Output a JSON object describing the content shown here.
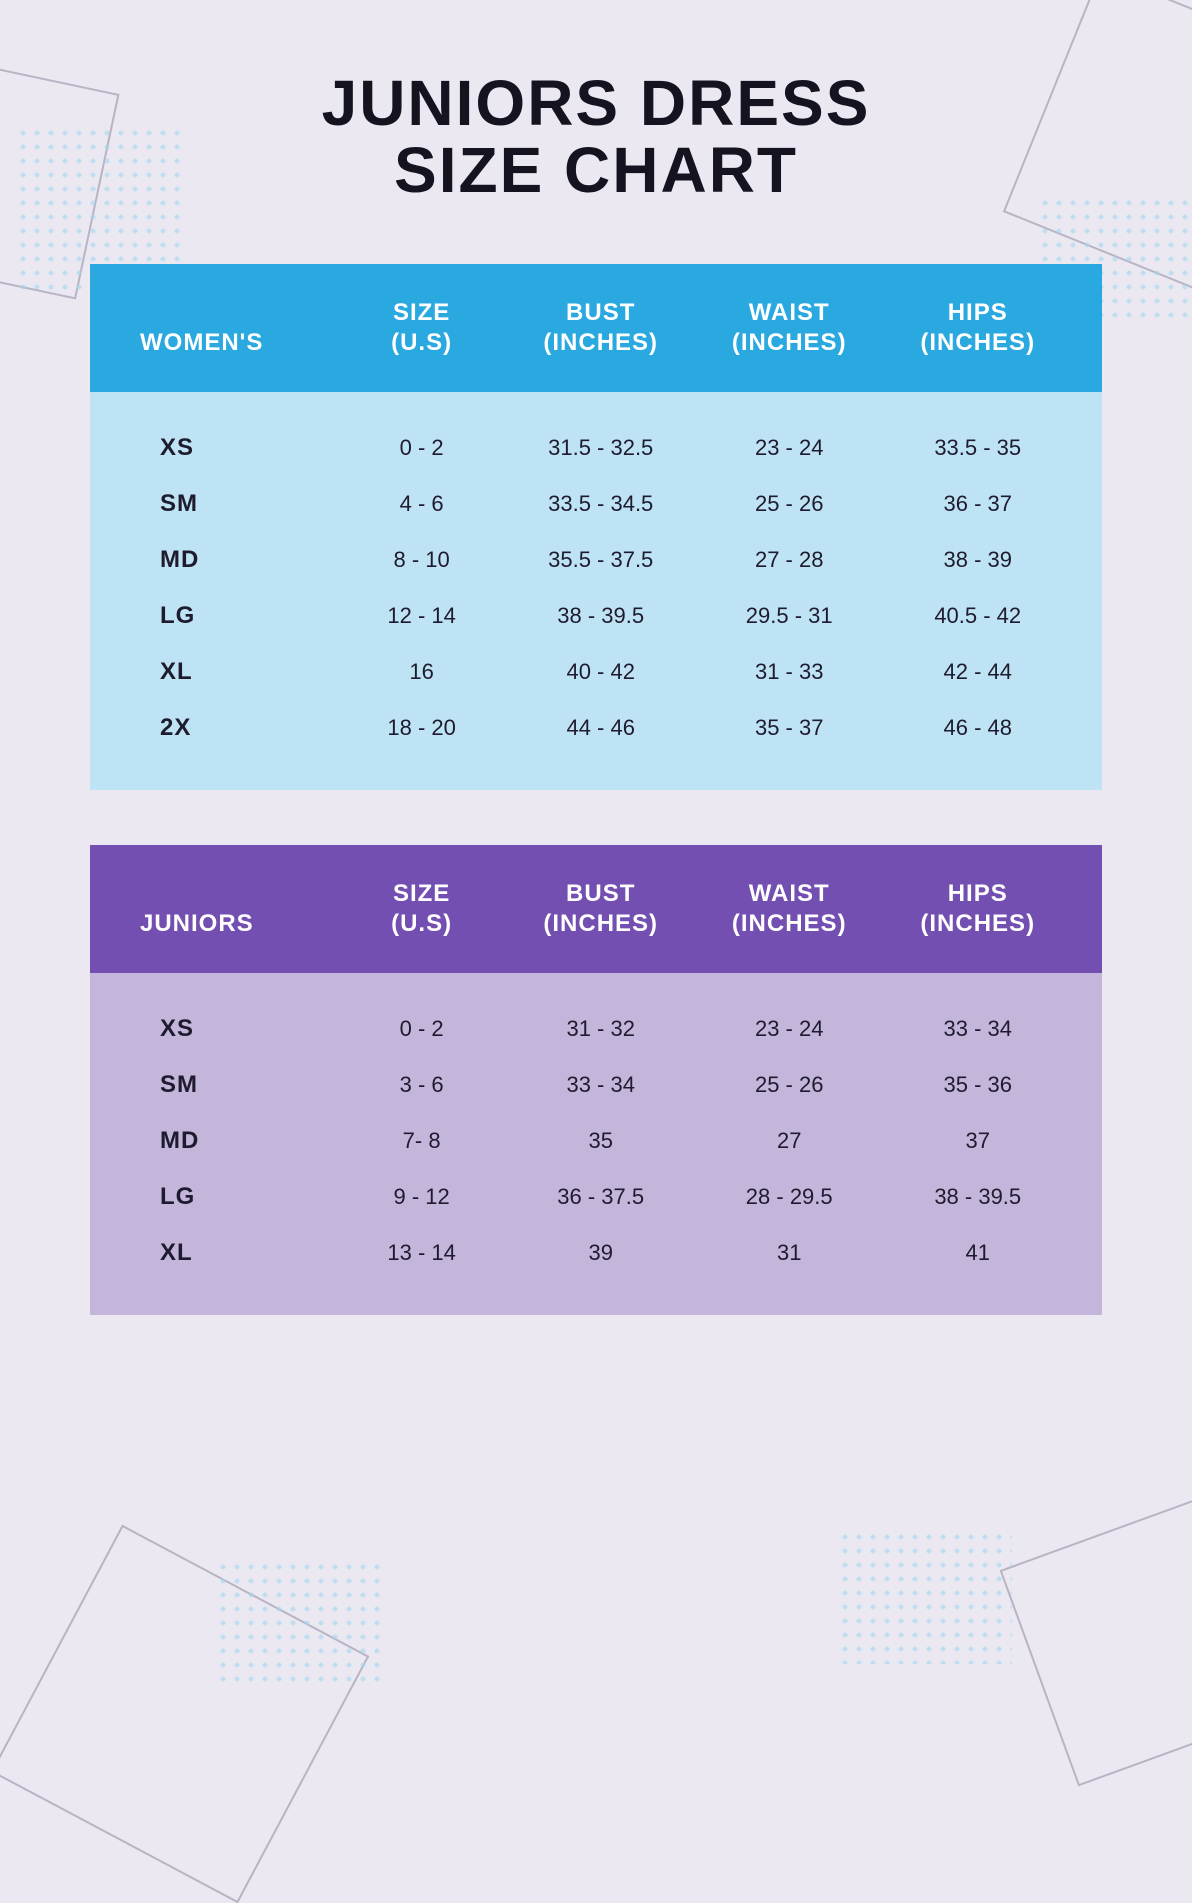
{
  "title_line1": "JUNIORS DRESS",
  "title_line2": "SIZE CHART",
  "background_color": "#ece8f2",
  "deco_line_color": "#5a5470",
  "dot_color": "#a4d8ef",
  "womens": {
    "header_bg": "#2aa8e0",
    "body_bg": "#bde3f4",
    "label": "WOMEN'S",
    "columns": [
      {
        "l1": "SIZE",
        "l2": "(U.S)"
      },
      {
        "l1": "BUST",
        "l2": "(INCHES)"
      },
      {
        "l1": "WAIST",
        "l2": "(INCHES)"
      },
      {
        "l1": "HIPS",
        "l2": "(INCHES)"
      }
    ],
    "rows": [
      {
        "size": "XS",
        "us": "0 - 2",
        "bust": "31.5 - 32.5",
        "waist": "23 - 24",
        "hips": "33.5 - 35"
      },
      {
        "size": "SM",
        "us": "4 - 6",
        "bust": "33.5 - 34.5",
        "waist": "25 - 26",
        "hips": "36 - 37"
      },
      {
        "size": "MD",
        "us": "8 - 10",
        "bust": "35.5 - 37.5",
        "waist": "27 - 28",
        "hips": "38 - 39"
      },
      {
        "size": "LG",
        "us": "12 - 14",
        "bust": "38 - 39.5",
        "waist": "29.5 - 31",
        "hips": "40.5 - 42"
      },
      {
        "size": "XL",
        "us": "16",
        "bust": "40 - 42",
        "waist": "31 - 33",
        "hips": "42 - 44"
      },
      {
        "size": "2X",
        "us": "18 - 20",
        "bust": "44 - 46",
        "waist": "35 - 37",
        "hips": "46 - 48"
      }
    ]
  },
  "juniors": {
    "header_bg": "#724fb0",
    "body_bg": "#c4b5db",
    "label": "JUNIORS",
    "columns": [
      {
        "l1": "SIZE",
        "l2": "(U.S)"
      },
      {
        "l1": "BUST",
        "l2": "(INCHES)"
      },
      {
        "l1": "WAIST",
        "l2": "(INCHES)"
      },
      {
        "l1": "HIPS",
        "l2": "(INCHES)"
      }
    ],
    "rows": [
      {
        "size": "XS",
        "us": "0 - 2",
        "bust": "31 - 32",
        "waist": "23 - 24",
        "hips": "33 - 34"
      },
      {
        "size": "SM",
        "us": "3 - 6",
        "bust": "33 - 34",
        "waist": "25 - 26",
        "hips": "35 - 36"
      },
      {
        "size": "MD",
        "us": "7- 8",
        "bust": "35",
        "waist": "27",
        "hips": "37"
      },
      {
        "size": "LG",
        "us": "9 - 12",
        "bust": "36 - 37.5",
        "waist": "28 - 29.5",
        "hips": "38 - 39.5"
      },
      {
        "size": "XL",
        "us": "13 - 14",
        "bust": "39",
        "waist": "31",
        "hips": "41"
      }
    ]
  }
}
